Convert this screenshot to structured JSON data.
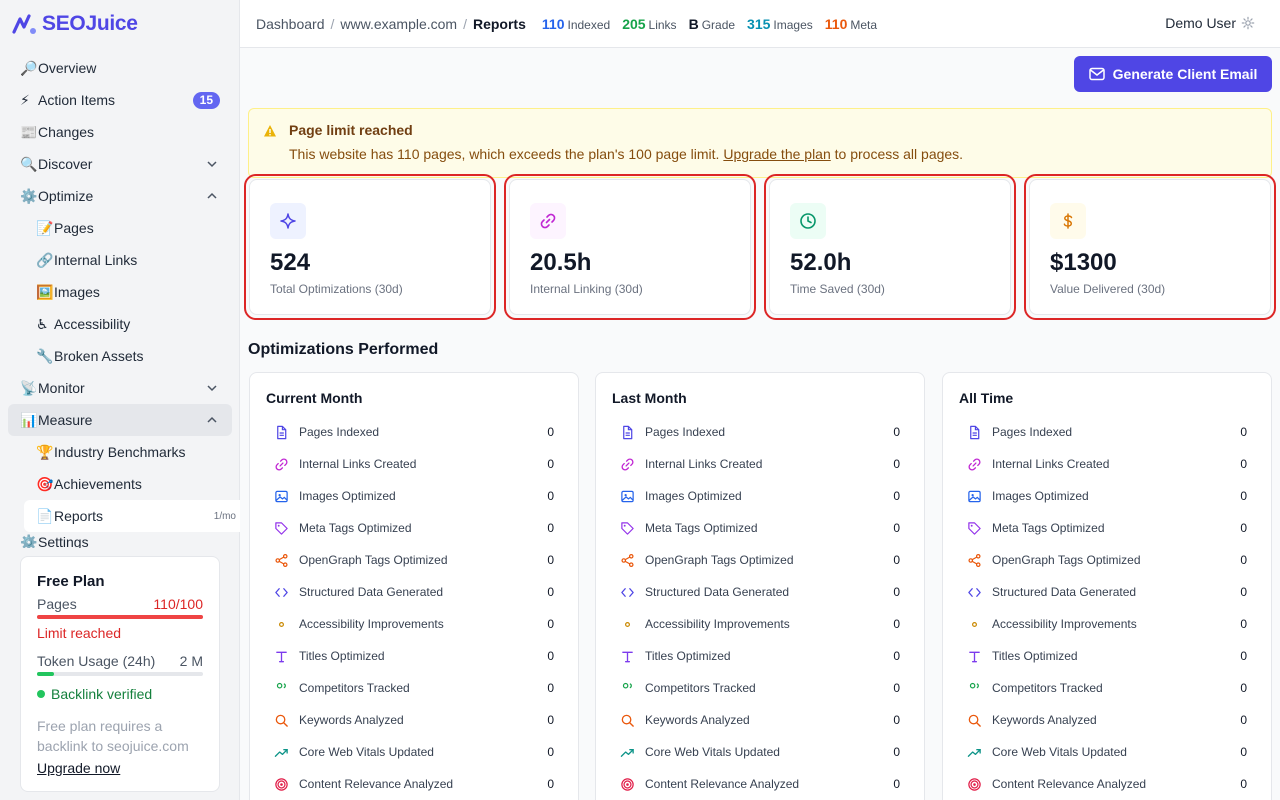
{
  "app": {
    "name": "SEOJuice"
  },
  "sidebar": {
    "items": [
      {
        "emoji": "🔎",
        "label": "Overview"
      },
      {
        "emoji": "⚡",
        "label": "Action Items",
        "badge": "15"
      },
      {
        "emoji": "📰",
        "label": "Changes"
      },
      {
        "emoji": "🔍",
        "label": "Discover"
      },
      {
        "emoji": "⚙️",
        "label": "Optimize"
      },
      {
        "emoji": "📝",
        "label": "Pages"
      },
      {
        "emoji": "🔗",
        "label": "Internal Links"
      },
      {
        "emoji": "🖼️",
        "label": "Images"
      },
      {
        "emoji": "♿",
        "label": "Accessibility"
      },
      {
        "emoji": "🔧",
        "label": "Broken Assets"
      },
      {
        "emoji": "📡",
        "label": "Monitor"
      },
      {
        "emoji": "📊",
        "label": "Measure"
      },
      {
        "emoji": "🏆",
        "label": "Industry Benchmarks"
      },
      {
        "emoji": "🎯",
        "label": "Achievements"
      },
      {
        "emoji": "📄",
        "label": "Reports",
        "note": "1/mo"
      },
      {
        "emoji": "⚙️",
        "label": "Settings"
      }
    ]
  },
  "plan": {
    "title": "Free Plan",
    "pages_label": "Pages",
    "pages_value": "110/100",
    "pages_fraction": 1.0,
    "limit_text": "Limit reached",
    "token_label": "Token Usage (24h)",
    "token_value": "2 M",
    "token_fraction": 0.1,
    "backlink_text": "Backlink verified",
    "note": "Free plan requires a backlink to seojuice.com",
    "upgrade": "Upgrade now"
  },
  "header": {
    "crumbs": [
      "Dashboard",
      "www.example.com",
      "Reports"
    ],
    "stats": [
      {
        "value": "110",
        "label": "Indexed",
        "color": "#2563eb"
      },
      {
        "value": "205",
        "label": "Links",
        "color": "#16a34a"
      },
      {
        "value": "B",
        "label": "Grade",
        "color": "#111827"
      },
      {
        "value": "315",
        "label": "Images",
        "color": "#0891b2"
      },
      {
        "value": "110",
        "label": "Meta",
        "color": "#ea580c"
      }
    ],
    "user": "Demo User"
  },
  "actions": {
    "generate_email": "Generate Client Email"
  },
  "alert": {
    "title": "Page limit reached",
    "body_prefix": "This website has 110 pages, which exceeds the plan's 100 page limit. ",
    "link": "Upgrade the plan",
    "body_suffix": " to process all pages."
  },
  "metrics": [
    {
      "value": "524",
      "label": "Total Optimizations (30d)",
      "icon": "sparkle-icon",
      "bg": "#eef2ff",
      "color": "#4f46e5"
    },
    {
      "value": "20.5h",
      "label": "Internal Linking (30d)",
      "icon": "link-icon",
      "bg": "#fdf4ff",
      "color": "#c026d3"
    },
    {
      "value": "52.0h",
      "label": "Time Saved (30d)",
      "icon": "clock-icon",
      "bg": "#ecfdf5",
      "color": "#059669"
    },
    {
      "value": "$1300",
      "label": "Value Delivered (30d)",
      "icon": "dollar-icon",
      "bg": "#fffbeb",
      "color": "#d97706"
    }
  ],
  "section_title": "Optimizations Performed",
  "columns": [
    {
      "title": "Current Month"
    },
    {
      "title": "Last Month"
    },
    {
      "title": "All Time"
    }
  ],
  "rows": [
    {
      "label": "Pages Indexed",
      "icon": "document",
      "color": "#4f46e5",
      "value": "0"
    },
    {
      "label": "Internal Links Created",
      "icon": "link",
      "color": "#c026d3",
      "value": "0"
    },
    {
      "label": "Images Optimized",
      "icon": "image",
      "color": "#2563eb",
      "value": "0"
    },
    {
      "label": "Meta Tags Optimized",
      "icon": "tag",
      "color": "#9333ea",
      "value": "0"
    },
    {
      "label": "OpenGraph Tags Optimized",
      "icon": "share",
      "color": "#ea580c",
      "value": "0"
    },
    {
      "label": "Structured Data Generated",
      "icon": "code",
      "color": "#4f46e5",
      "value": "0"
    },
    {
      "label": "Accessibility Improvements",
      "icon": "eye",
      "color": "#ca8a04",
      "value": "0"
    },
    {
      "label": "Titles Optimized",
      "icon": "title",
      "color": "#7c3aed",
      "value": "0"
    },
    {
      "label": "Competitors Tracked",
      "icon": "users",
      "color": "#16a34a",
      "value": "0"
    },
    {
      "label": "Keywords Analyzed",
      "icon": "search",
      "color": "#ea580c",
      "value": "0"
    },
    {
      "label": "Core Web Vitals Updated",
      "icon": "trend",
      "color": "#0d9488",
      "value": "0"
    },
    {
      "label": "Content Relevance Analyzed",
      "icon": "target",
      "color": "#e11d48",
      "value": "0"
    }
  ]
}
